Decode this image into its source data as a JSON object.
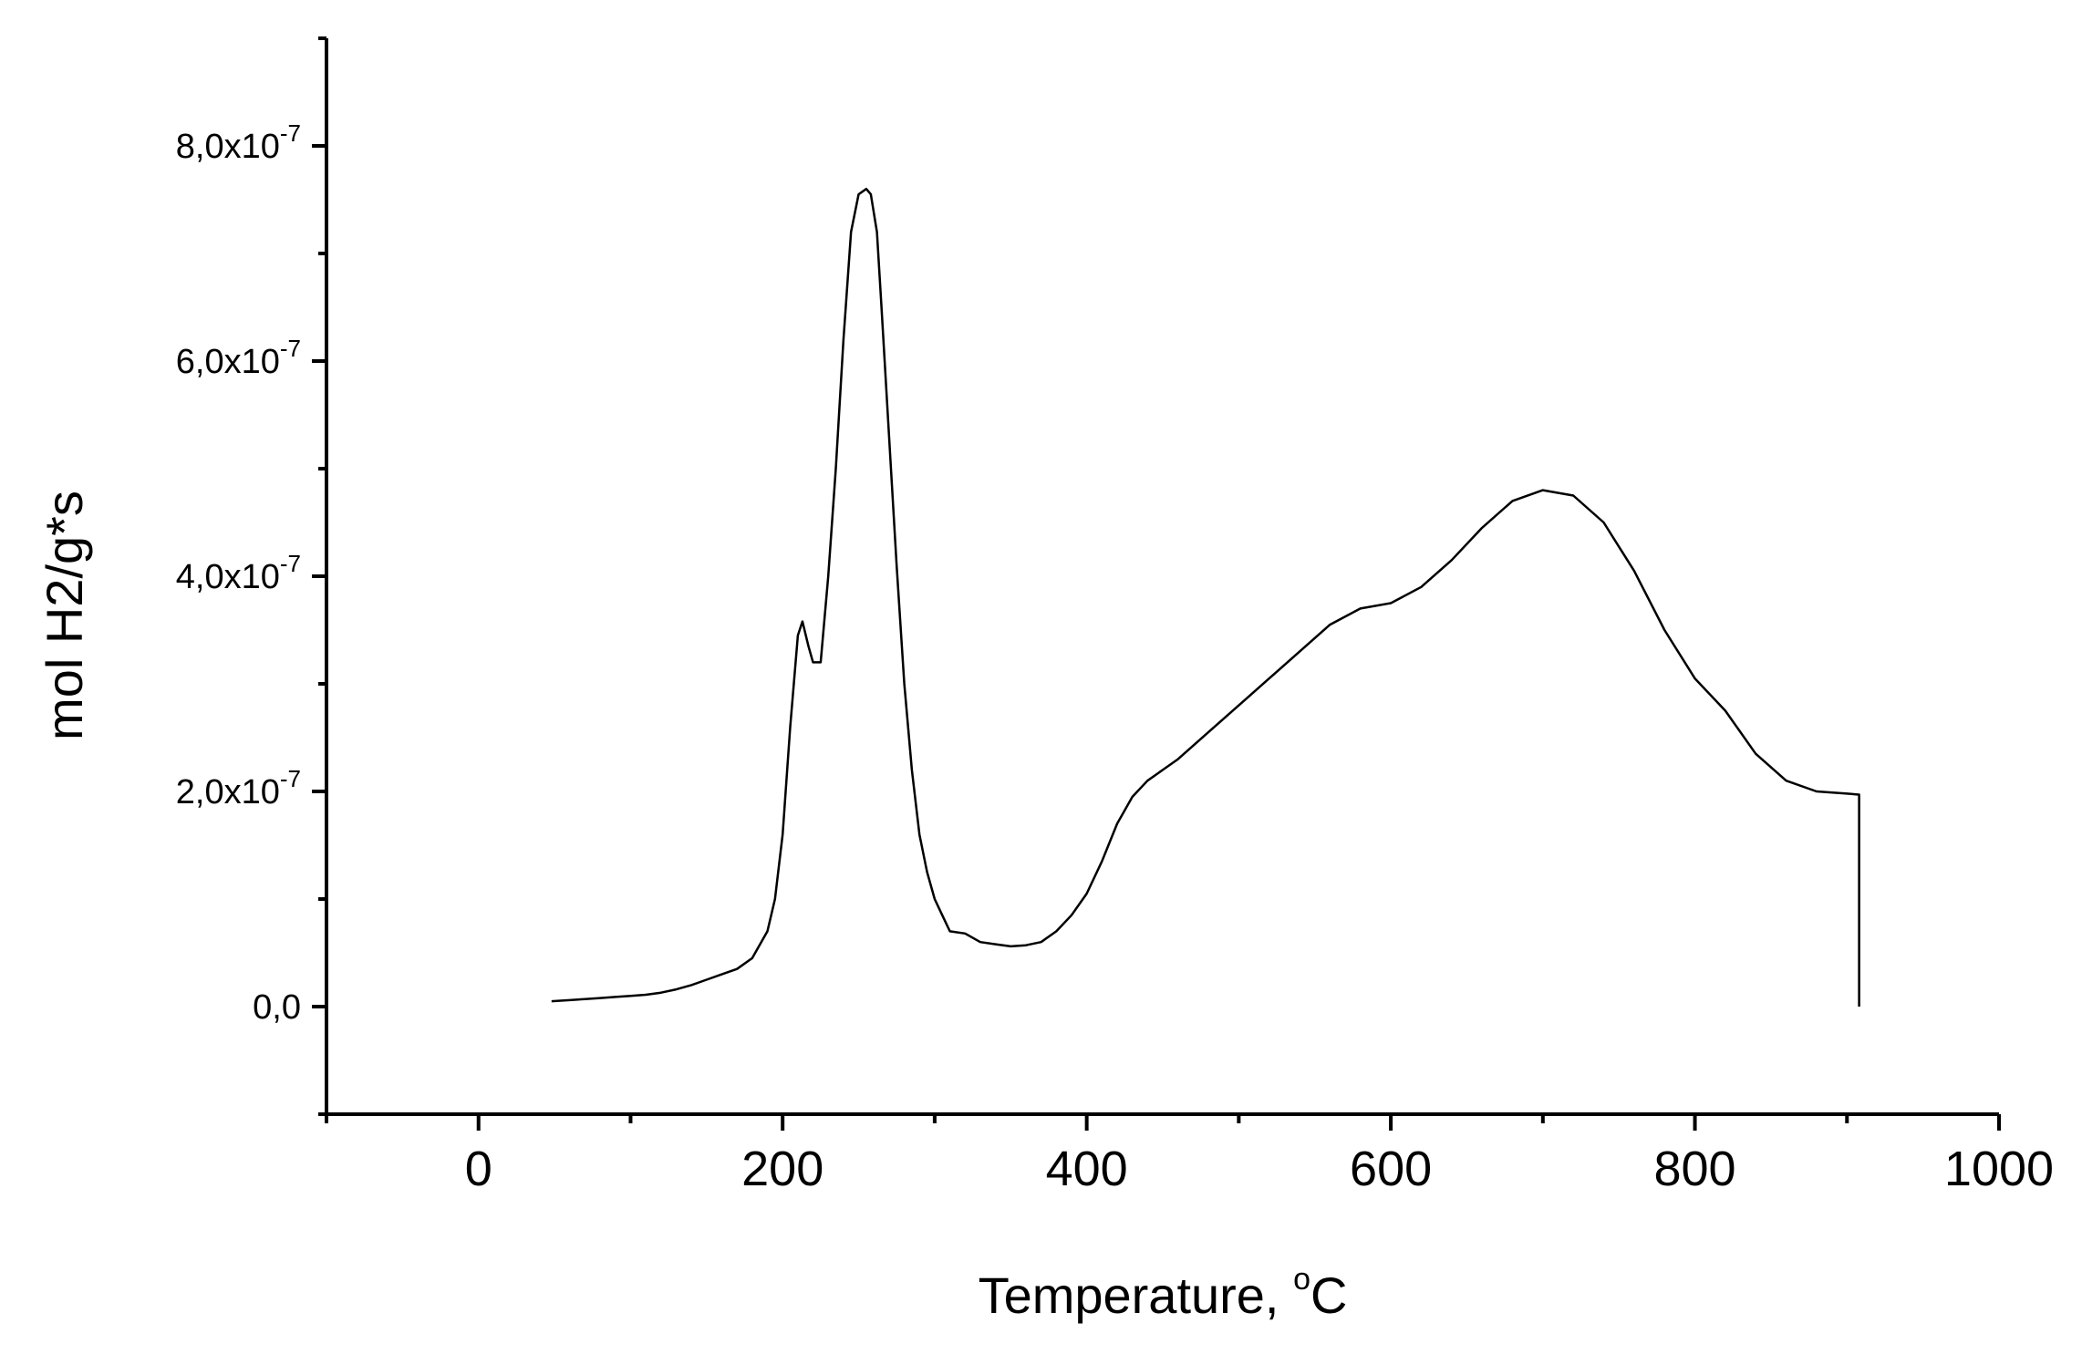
{
  "chart_data": {
    "type": "line",
    "title": "",
    "xlabel": "Temperature, ",
    "xlabel_unit_sup": "o",
    "xlabel_unit": "C",
    "ylabel": "mol H2/g*s",
    "xlim": [
      -100,
      1000
    ],
    "ylim": [
      -1e-07,
      9e-07
    ],
    "x_ticks": [
      {
        "value": 0,
        "label": "0"
      },
      {
        "value": 200,
        "label": "200"
      },
      {
        "value": 400,
        "label": "400"
      },
      {
        "value": 600,
        "label": "600"
      },
      {
        "value": 800,
        "label": "800"
      },
      {
        "value": 1000,
        "label": "1000"
      }
    ],
    "x_minor_ticks": [
      -100,
      100,
      300,
      500,
      700,
      900
    ],
    "y_ticks": [
      {
        "value": 0,
        "mantissa": "0,0",
        "exponent": ""
      },
      {
        "value": 2e-07,
        "mantissa": "2,0x10",
        "exponent": "-7"
      },
      {
        "value": 4e-07,
        "mantissa": "4,0x10",
        "exponent": "-7"
      },
      {
        "value": 6e-07,
        "mantissa": "6,0x10",
        "exponent": "-7"
      },
      {
        "value": 8e-07,
        "mantissa": "8,0x10",
        "exponent": "-7"
      }
    ],
    "y_minor_ticks": [
      -1e-07,
      1e-07,
      3e-07,
      5e-07,
      7e-07,
      9e-07
    ],
    "grid": false,
    "line_color": "#000000",
    "series": [
      {
        "values_unit": "1e-7 mol H2/g*s",
        "x": [
          48,
          60,
          70,
          80,
          90,
          100,
          110,
          120,
          130,
          140,
          150,
          160,
          170,
          180,
          190,
          195,
          200,
          205,
          210,
          213,
          217,
          220,
          225,
          230,
          235,
          240,
          245,
          250,
          255,
          258,
          262,
          265,
          270,
          275,
          280,
          285,
          290,
          295,
          300,
          305,
          310,
          320,
          330,
          340,
          350,
          360,
          370,
          380,
          390,
          400,
          410,
          420,
          430,
          440,
          450,
          460,
          480,
          500,
          520,
          540,
          560,
          580,
          600,
          620,
          640,
          660,
          680,
          700,
          720,
          740,
          760,
          780,
          800,
          820,
          840,
          860,
          880,
          900,
          908,
          908
        ],
        "values": [
          0.05,
          0.06,
          0.07,
          0.08,
          0.09,
          0.1,
          0.11,
          0.13,
          0.16,
          0.2,
          0.25,
          0.3,
          0.35,
          0.45,
          0.7,
          1.0,
          1.6,
          2.6,
          3.45,
          3.58,
          3.35,
          3.2,
          3.2,
          4.0,
          5.0,
          6.2,
          7.2,
          7.55,
          7.6,
          7.55,
          7.2,
          6.5,
          5.3,
          4.1,
          3.0,
          2.2,
          1.6,
          1.25,
          1.0,
          0.85,
          0.7,
          0.68,
          0.6,
          0.58,
          0.56,
          0.57,
          0.6,
          0.7,
          0.85,
          1.05,
          1.35,
          1.7,
          1.95,
          2.1,
          2.2,
          2.3,
          2.55,
          2.8,
          3.05,
          3.3,
          3.55,
          3.7,
          3.75,
          3.9,
          4.15,
          4.45,
          4.7,
          4.8,
          4.75,
          4.5,
          4.05,
          3.5,
          3.05,
          2.75,
          2.35,
          2.1,
          2.0,
          1.98,
          1.97,
          0.0
        ]
      }
    ]
  }
}
